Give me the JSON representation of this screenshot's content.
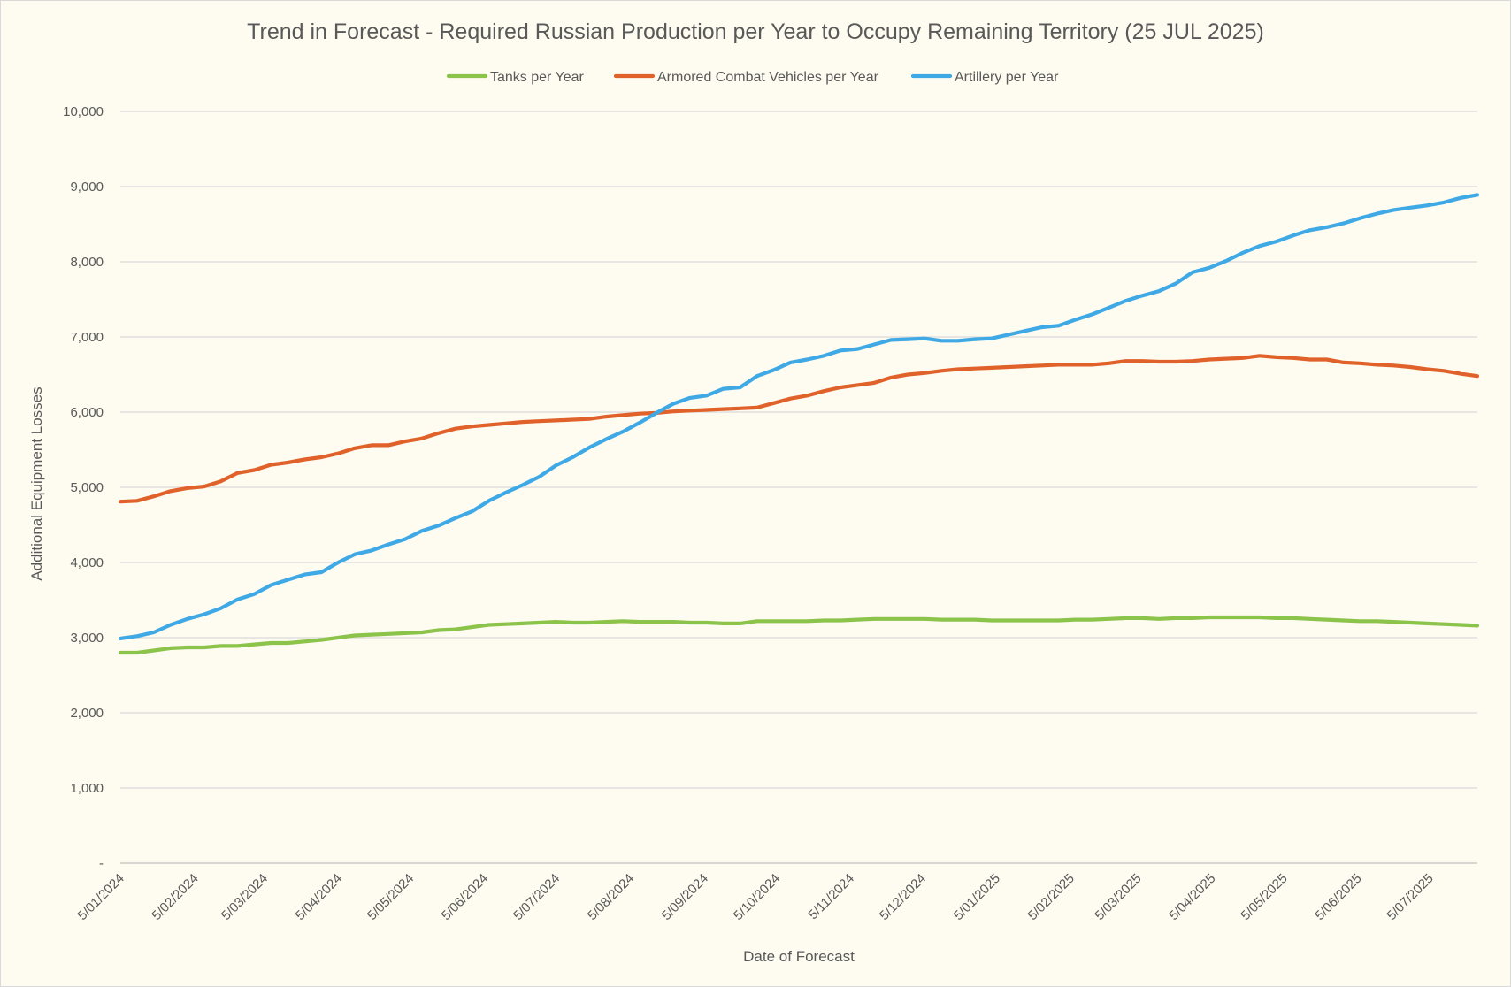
{
  "chart_data": {
    "type": "line",
    "title": "Trend in Forecast - Required Russian Production per Year to Occupy Remaining Territory (25 JUL 2025)",
    "xlabel": "Date of Forecast",
    "ylabel": "Additional Equipment Losses",
    "ylim": [
      0,
      10000
    ],
    "y_ticks": [
      {
        "value": 0,
        "label": "-"
      },
      {
        "value": 1000,
        "label": "1,000"
      },
      {
        "value": 2000,
        "label": "2,000"
      },
      {
        "value": 3000,
        "label": "3,000"
      },
      {
        "value": 4000,
        "label": "4,000"
      },
      {
        "value": 5000,
        "label": "5,000"
      },
      {
        "value": 6000,
        "label": "6,000"
      },
      {
        "value": 7000,
        "label": "7,000"
      },
      {
        "value": 8000,
        "label": "8,000"
      },
      {
        "value": 9000,
        "label": "9,000"
      },
      {
        "value": 10000,
        "label": "10,000"
      }
    ],
    "x_ticks": [
      {
        "date": "2024-01-05",
        "label": "5/01/2024"
      },
      {
        "date": "2024-02-05",
        "label": "5/02/2024"
      },
      {
        "date": "2024-03-05",
        "label": "5/03/2024"
      },
      {
        "date": "2024-04-05",
        "label": "5/04/2024"
      },
      {
        "date": "2024-05-05",
        "label": "5/05/2024"
      },
      {
        "date": "2024-06-05",
        "label": "5/06/2024"
      },
      {
        "date": "2024-07-05",
        "label": "5/07/2024"
      },
      {
        "date": "2024-08-05",
        "label": "5/08/2024"
      },
      {
        "date": "2024-09-05",
        "label": "5/09/2024"
      },
      {
        "date": "2024-10-05",
        "label": "5/10/2024"
      },
      {
        "date": "2024-11-05",
        "label": "5/11/2024"
      },
      {
        "date": "2024-12-05",
        "label": "5/12/2024"
      },
      {
        "date": "2025-01-05",
        "label": "5/01/2025"
      },
      {
        "date": "2025-02-05",
        "label": "5/02/2025"
      },
      {
        "date": "2025-03-05",
        "label": "5/03/2025"
      },
      {
        "date": "2025-04-05",
        "label": "5/04/2025"
      },
      {
        "date": "2025-05-05",
        "label": "5/05/2025"
      },
      {
        "date": "2025-06-05",
        "label": "5/06/2025"
      },
      {
        "date": "2025-07-05",
        "label": "5/07/2025"
      }
    ],
    "x_range": [
      "2024-01-05",
      "2025-07-25"
    ],
    "grid": true,
    "legend_position": "top",
    "series": [
      {
        "name": "Tanks per Year",
        "color": "#8cc34a",
        "points": [
          [
            "2024-01-05",
            2800
          ],
          [
            "2024-01-12",
            2800
          ],
          [
            "2024-01-19",
            2830
          ],
          [
            "2024-01-26",
            2860
          ],
          [
            "2024-02-02",
            2870
          ],
          [
            "2024-02-09",
            2870
          ],
          [
            "2024-02-16",
            2890
          ],
          [
            "2024-02-23",
            2890
          ],
          [
            "2024-03-01",
            2910
          ],
          [
            "2024-03-08",
            2930
          ],
          [
            "2024-03-15",
            2930
          ],
          [
            "2024-03-22",
            2950
          ],
          [
            "2024-03-29",
            2970
          ],
          [
            "2024-04-05",
            3000
          ],
          [
            "2024-04-12",
            3030
          ],
          [
            "2024-04-19",
            3040
          ],
          [
            "2024-04-26",
            3050
          ],
          [
            "2024-05-03",
            3060
          ],
          [
            "2024-05-10",
            3070
          ],
          [
            "2024-05-17",
            3100
          ],
          [
            "2024-05-24",
            3110
          ],
          [
            "2024-05-31",
            3140
          ],
          [
            "2024-06-07",
            3170
          ],
          [
            "2024-06-14",
            3180
          ],
          [
            "2024-06-21",
            3190
          ],
          [
            "2024-06-28",
            3200
          ],
          [
            "2024-07-05",
            3210
          ],
          [
            "2024-07-12",
            3200
          ],
          [
            "2024-07-19",
            3200
          ],
          [
            "2024-07-26",
            3210
          ],
          [
            "2024-08-02",
            3220
          ],
          [
            "2024-08-09",
            3210
          ],
          [
            "2024-08-16",
            3210
          ],
          [
            "2024-08-23",
            3210
          ],
          [
            "2024-08-30",
            3200
          ],
          [
            "2024-09-06",
            3200
          ],
          [
            "2024-09-13",
            3190
          ],
          [
            "2024-09-20",
            3190
          ],
          [
            "2024-09-27",
            3220
          ],
          [
            "2024-10-04",
            3220
          ],
          [
            "2024-10-11",
            3220
          ],
          [
            "2024-10-18",
            3220
          ],
          [
            "2024-10-25",
            3230
          ],
          [
            "2024-11-01",
            3230
          ],
          [
            "2024-11-08",
            3240
          ],
          [
            "2024-11-15",
            3250
          ],
          [
            "2024-11-22",
            3250
          ],
          [
            "2024-11-29",
            3250
          ],
          [
            "2024-12-06",
            3250
          ],
          [
            "2024-12-13",
            3240
          ],
          [
            "2024-12-20",
            3240
          ],
          [
            "2024-12-27",
            3240
          ],
          [
            "2025-01-03",
            3230
          ],
          [
            "2025-01-10",
            3230
          ],
          [
            "2025-01-17",
            3230
          ],
          [
            "2025-01-24",
            3230
          ],
          [
            "2025-01-31",
            3230
          ],
          [
            "2025-02-07",
            3240
          ],
          [
            "2025-02-14",
            3240
          ],
          [
            "2025-02-21",
            3250
          ],
          [
            "2025-02-28",
            3260
          ],
          [
            "2025-03-07",
            3260
          ],
          [
            "2025-03-14",
            3250
          ],
          [
            "2025-03-21",
            3260
          ],
          [
            "2025-03-28",
            3260
          ],
          [
            "2025-04-04",
            3270
          ],
          [
            "2025-04-11",
            3270
          ],
          [
            "2025-04-18",
            3270
          ],
          [
            "2025-04-25",
            3270
          ],
          [
            "2025-05-02",
            3260
          ],
          [
            "2025-05-09",
            3260
          ],
          [
            "2025-05-16",
            3250
          ],
          [
            "2025-05-23",
            3240
          ],
          [
            "2025-05-30",
            3230
          ],
          [
            "2025-06-06",
            3220
          ],
          [
            "2025-06-13",
            3220
          ],
          [
            "2025-06-20",
            3210
          ],
          [
            "2025-06-27",
            3200
          ],
          [
            "2025-07-04",
            3190
          ],
          [
            "2025-07-11",
            3180
          ],
          [
            "2025-07-18",
            3170
          ],
          [
            "2025-07-25",
            3160
          ]
        ]
      },
      {
        "name": "Armored Combat Vehicles per Year",
        "color": "#e0622a",
        "points": [
          [
            "2024-01-05",
            4810
          ],
          [
            "2024-01-12",
            4820
          ],
          [
            "2024-01-19",
            4880
          ],
          [
            "2024-01-26",
            4950
          ],
          [
            "2024-02-02",
            4990
          ],
          [
            "2024-02-09",
            5010
          ],
          [
            "2024-02-16",
            5080
          ],
          [
            "2024-02-23",
            5190
          ],
          [
            "2024-03-01",
            5230
          ],
          [
            "2024-03-08",
            5300
          ],
          [
            "2024-03-15",
            5330
          ],
          [
            "2024-03-22",
            5370
          ],
          [
            "2024-03-29",
            5400
          ],
          [
            "2024-04-05",
            5450
          ],
          [
            "2024-04-12",
            5520
          ],
          [
            "2024-04-19",
            5560
          ],
          [
            "2024-04-26",
            5560
          ],
          [
            "2024-05-03",
            5610
          ],
          [
            "2024-05-10",
            5650
          ],
          [
            "2024-05-17",
            5720
          ],
          [
            "2024-05-24",
            5780
          ],
          [
            "2024-05-31",
            5810
          ],
          [
            "2024-06-07",
            5830
          ],
          [
            "2024-06-14",
            5850
          ],
          [
            "2024-06-21",
            5870
          ],
          [
            "2024-06-28",
            5880
          ],
          [
            "2024-07-05",
            5890
          ],
          [
            "2024-07-12",
            5900
          ],
          [
            "2024-07-19",
            5910
          ],
          [
            "2024-07-26",
            5940
          ],
          [
            "2024-08-02",
            5960
          ],
          [
            "2024-08-09",
            5980
          ],
          [
            "2024-08-16",
            5990
          ],
          [
            "2024-08-23",
            6010
          ],
          [
            "2024-08-30",
            6020
          ],
          [
            "2024-09-06",
            6030
          ],
          [
            "2024-09-13",
            6040
          ],
          [
            "2024-09-20",
            6050
          ],
          [
            "2024-09-27",
            6060
          ],
          [
            "2024-10-04",
            6120
          ],
          [
            "2024-10-11",
            6180
          ],
          [
            "2024-10-18",
            6220
          ],
          [
            "2024-10-25",
            6280
          ],
          [
            "2024-11-01",
            6330
          ],
          [
            "2024-11-08",
            6360
          ],
          [
            "2024-11-15",
            6390
          ],
          [
            "2024-11-22",
            6460
          ],
          [
            "2024-11-29",
            6500
          ],
          [
            "2024-12-06",
            6520
          ],
          [
            "2024-12-13",
            6550
          ],
          [
            "2024-12-20",
            6570
          ],
          [
            "2024-12-27",
            6580
          ],
          [
            "2025-01-03",
            6590
          ],
          [
            "2025-01-10",
            6600
          ],
          [
            "2025-01-17",
            6610
          ],
          [
            "2025-01-24",
            6620
          ],
          [
            "2025-01-31",
            6630
          ],
          [
            "2025-02-07",
            6630
          ],
          [
            "2025-02-14",
            6630
          ],
          [
            "2025-02-21",
            6650
          ],
          [
            "2025-02-28",
            6680
          ],
          [
            "2025-03-07",
            6680
          ],
          [
            "2025-03-14",
            6670
          ],
          [
            "2025-03-21",
            6670
          ],
          [
            "2025-03-28",
            6680
          ],
          [
            "2025-04-04",
            6700
          ],
          [
            "2025-04-11",
            6710
          ],
          [
            "2025-04-18",
            6720
          ],
          [
            "2025-04-25",
            6750
          ],
          [
            "2025-05-02",
            6730
          ],
          [
            "2025-05-09",
            6720
          ],
          [
            "2025-05-16",
            6700
          ],
          [
            "2025-05-23",
            6700
          ],
          [
            "2025-05-30",
            6660
          ],
          [
            "2025-06-06",
            6650
          ],
          [
            "2025-06-13",
            6630
          ],
          [
            "2025-06-20",
            6620
          ],
          [
            "2025-06-27",
            6600
          ],
          [
            "2025-07-04",
            6570
          ],
          [
            "2025-07-11",
            6550
          ],
          [
            "2025-07-18",
            6510
          ],
          [
            "2025-07-25",
            6480
          ]
        ]
      },
      {
        "name": "Artillery per Year",
        "color": "#3fa9e6",
        "points": [
          [
            "2024-01-05",
            2990
          ],
          [
            "2024-01-12",
            3020
          ],
          [
            "2024-01-19",
            3070
          ],
          [
            "2024-01-26",
            3170
          ],
          [
            "2024-02-02",
            3250
          ],
          [
            "2024-02-09",
            3310
          ],
          [
            "2024-02-16",
            3390
          ],
          [
            "2024-02-23",
            3510
          ],
          [
            "2024-03-01",
            3580
          ],
          [
            "2024-03-08",
            3700
          ],
          [
            "2024-03-15",
            3770
          ],
          [
            "2024-03-22",
            3840
          ],
          [
            "2024-03-29",
            3870
          ],
          [
            "2024-04-05",
            4000
          ],
          [
            "2024-04-12",
            4110
          ],
          [
            "2024-04-19",
            4160
          ],
          [
            "2024-04-26",
            4240
          ],
          [
            "2024-05-03",
            4310
          ],
          [
            "2024-05-10",
            4420
          ],
          [
            "2024-05-17",
            4490
          ],
          [
            "2024-05-24",
            4590
          ],
          [
            "2024-05-31",
            4680
          ],
          [
            "2024-06-07",
            4820
          ],
          [
            "2024-06-14",
            4930
          ],
          [
            "2024-06-21",
            5030
          ],
          [
            "2024-06-28",
            5140
          ],
          [
            "2024-07-05",
            5290
          ],
          [
            "2024-07-12",
            5400
          ],
          [
            "2024-07-19",
            5530
          ],
          [
            "2024-07-26",
            5640
          ],
          [
            "2024-08-02",
            5740
          ],
          [
            "2024-08-09",
            5860
          ],
          [
            "2024-08-16",
            5990
          ],
          [
            "2024-08-23",
            6110
          ],
          [
            "2024-08-30",
            6190
          ],
          [
            "2024-09-06",
            6220
          ],
          [
            "2024-09-13",
            6310
          ],
          [
            "2024-09-20",
            6330
          ],
          [
            "2024-09-27",
            6480
          ],
          [
            "2024-10-04",
            6560
          ],
          [
            "2024-10-11",
            6660
          ],
          [
            "2024-10-18",
            6700
          ],
          [
            "2024-10-25",
            6750
          ],
          [
            "2024-11-01",
            6820
          ],
          [
            "2024-11-08",
            6840
          ],
          [
            "2024-11-15",
            6900
          ],
          [
            "2024-11-22",
            6960
          ],
          [
            "2024-11-29",
            6970
          ],
          [
            "2024-12-06",
            6980
          ],
          [
            "2024-12-13",
            6950
          ],
          [
            "2024-12-20",
            6950
          ],
          [
            "2024-12-27",
            6970
          ],
          [
            "2025-01-03",
            6980
          ],
          [
            "2025-01-10",
            7030
          ],
          [
            "2025-01-17",
            7080
          ],
          [
            "2025-01-24",
            7130
          ],
          [
            "2025-01-31",
            7150
          ],
          [
            "2025-02-07",
            7230
          ],
          [
            "2025-02-14",
            7300
          ],
          [
            "2025-02-21",
            7390
          ],
          [
            "2025-02-28",
            7480
          ],
          [
            "2025-03-07",
            7550
          ],
          [
            "2025-03-14",
            7610
          ],
          [
            "2025-03-21",
            7710
          ],
          [
            "2025-03-28",
            7860
          ],
          [
            "2025-04-04",
            7920
          ],
          [
            "2025-04-11",
            8010
          ],
          [
            "2025-04-18",
            8120
          ],
          [
            "2025-04-25",
            8210
          ],
          [
            "2025-05-02",
            8270
          ],
          [
            "2025-05-09",
            8350
          ],
          [
            "2025-05-16",
            8420
          ],
          [
            "2025-05-23",
            8460
          ],
          [
            "2025-05-30",
            8510
          ],
          [
            "2025-06-06",
            8580
          ],
          [
            "2025-06-13",
            8640
          ],
          [
            "2025-06-20",
            8690
          ],
          [
            "2025-06-27",
            8720
          ],
          [
            "2025-07-04",
            8750
          ],
          [
            "2025-07-11",
            8790
          ],
          [
            "2025-07-18",
            8850
          ],
          [
            "2025-07-25",
            8890
          ]
        ]
      }
    ]
  }
}
